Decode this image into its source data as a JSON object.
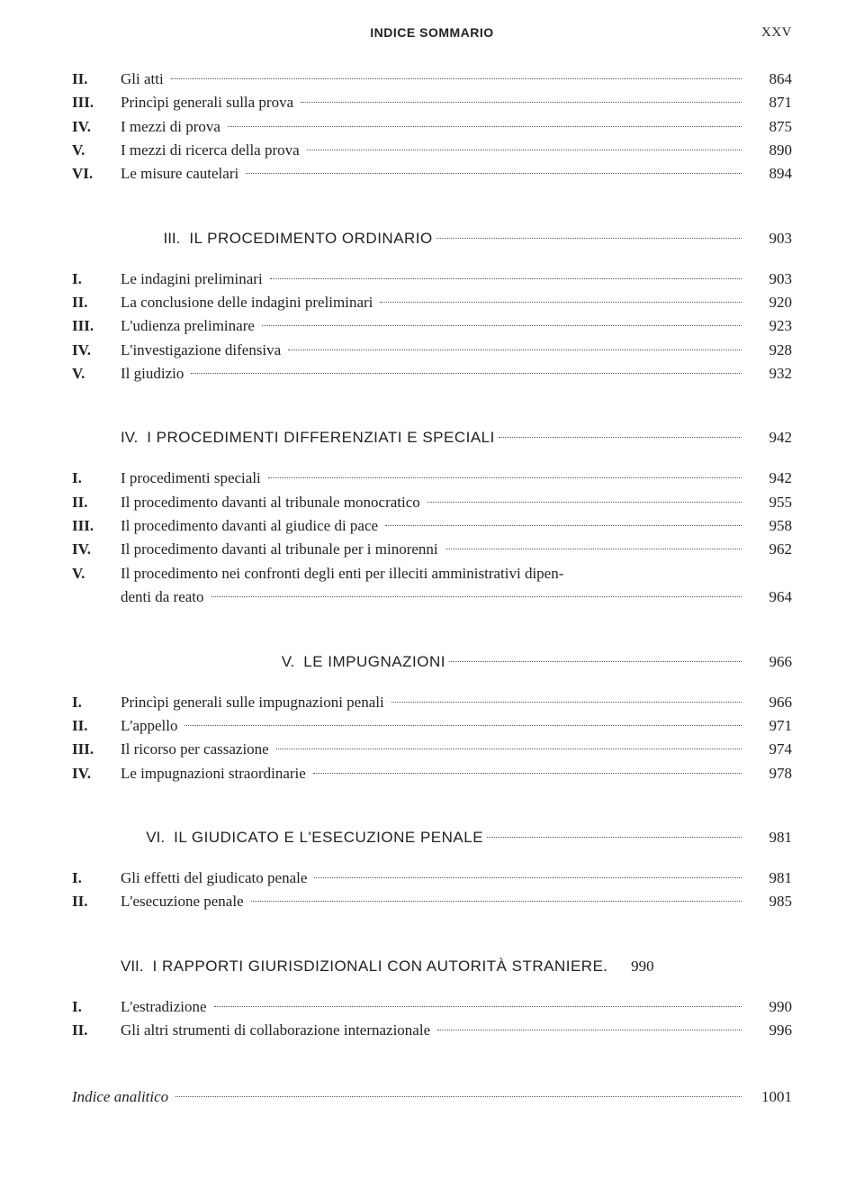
{
  "header": {
    "title": "INDICE SOMMARIO",
    "page_label": "XXV"
  },
  "block1": {
    "items": [
      {
        "num": "II.",
        "label": "Gli atti",
        "pg": "864"
      },
      {
        "num": "III.",
        "label": "Princìpi generali sulla prova",
        "pg": "871"
      },
      {
        "num": "IV.",
        "label": "I mezzi di prova",
        "pg": "875"
      },
      {
        "num": "V.",
        "label": "I mezzi di ricerca della prova",
        "pg": "890"
      },
      {
        "num": "VI.",
        "label": "Le misure cautelari",
        "pg": "894"
      }
    ]
  },
  "sec3": {
    "num": "III.",
    "title": "IL PROCEDIMENTO ORDINARIO",
    "pg": "903",
    "items": [
      {
        "num": "I.",
        "label": "Le indagini preliminari",
        "pg": "903"
      },
      {
        "num": "II.",
        "label": "La conclusione delle indagini preliminari",
        "pg": "920"
      },
      {
        "num": "III.",
        "label": "L'udienza preliminare",
        "pg": "923"
      },
      {
        "num": "IV.",
        "label": "L'investigazione difensiva",
        "pg": "928"
      },
      {
        "num": "V.",
        "label": "Il giudizio",
        "pg": "932"
      }
    ]
  },
  "sec4": {
    "num": "IV.",
    "title": "I PROCEDIMENTI DIFFERENZIATI E SPECIALI",
    "pg": "942",
    "items": [
      {
        "num": "I.",
        "label": "I procedimenti speciali",
        "pg": "942"
      },
      {
        "num": "II.",
        "label": "Il procedimento davanti al tribunale monocratico",
        "pg": "955"
      },
      {
        "num": "III.",
        "label": "Il procedimento davanti al giudice di pace",
        "pg": "958"
      },
      {
        "num": "IV.",
        "label": "Il procedimento davanti al tribunale per i minorenni",
        "pg": "962"
      }
    ],
    "wrap_item": {
      "num": "V.",
      "label_line1": "Il procedimento nei confronti degli enti per illeciti amministrativi dipen-",
      "label_line2": "denti da reato",
      "pg": "964"
    }
  },
  "sec5": {
    "num": "V.",
    "title": "LE IMPUGNAZIONI",
    "pg": "966",
    "items": [
      {
        "num": "I.",
        "label": "Princìpi generali sulle impugnazioni penali",
        "pg": "966"
      },
      {
        "num": "II.",
        "label": "L'appello",
        "pg": "971"
      },
      {
        "num": "III.",
        "label": "Il ricorso per cassazione",
        "pg": "974"
      },
      {
        "num": "IV.",
        "label": "Le impugnazioni straordinarie",
        "pg": "978"
      }
    ]
  },
  "sec6": {
    "num": "VI.",
    "title": "IL GIUDICATO E L'ESECUZIONE PENALE",
    "pg": "981",
    "items": [
      {
        "num": "I.",
        "label": "Gli effetti del giudicato penale",
        "pg": "981"
      },
      {
        "num": "II.",
        "label": "L'esecuzione penale",
        "pg": "985"
      }
    ]
  },
  "sec7": {
    "num": "VII.",
    "title": "I RAPPORTI GIURISDIZIONALI CON AUTORITÀ STRANIERE",
    "pg": "990",
    "sep": ".",
    "items": [
      {
        "num": "I.",
        "label": "L'estradizione",
        "pg": "990"
      },
      {
        "num": "II.",
        "label": "Gli altri strumenti di collaborazione internazionale",
        "pg": "996"
      }
    ]
  },
  "final": {
    "label": "Indice analitico",
    "pg": "1001"
  }
}
